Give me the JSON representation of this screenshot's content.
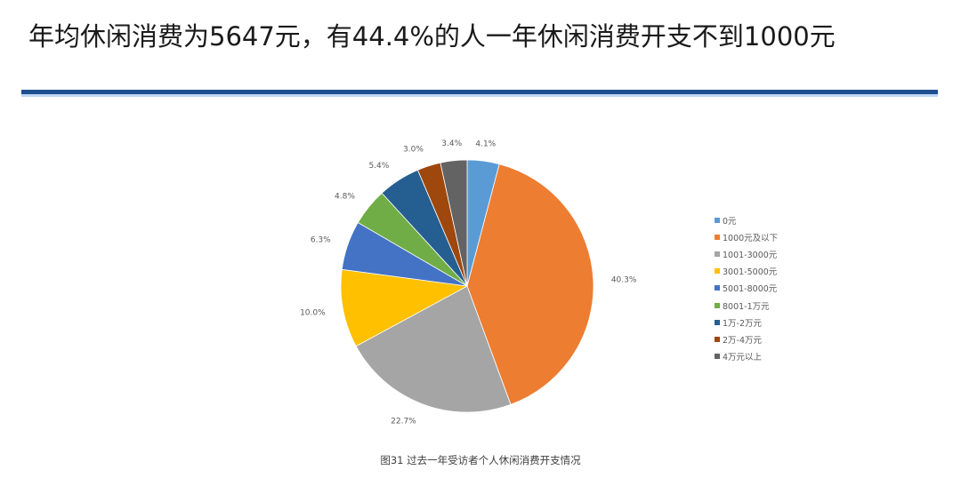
{
  "header": {
    "title": "年均休闲消费为5647元，有44.4%的人一年休闲消费开支不到1000元"
  },
  "colors": {
    "rule": "#1e4f8f",
    "rule_light": "#bcd6f3"
  },
  "caption": "图31 过去一年受访者个人休闲消费开支情况",
  "chart_data": {
    "type": "pie",
    "title": "图31 过去一年受访者个人休闲消费开支情况",
    "categories": [
      "0元",
      "1000元及以下",
      "1001-3000元",
      "3001-5000元",
      "5001-8000元",
      "8001-1万元",
      "1万-2万元",
      "2万-4万元",
      "4万元以上"
    ],
    "values": [
      4.1,
      40.3,
      22.7,
      10.0,
      6.3,
      4.8,
      5.4,
      3.0,
      3.4
    ],
    "labels": [
      "4.1%",
      "40.3%",
      "22.7%",
      "10.0%",
      "6.3%",
      "4.8%",
      "5.4%",
      "3.0%",
      "3.4%"
    ],
    "colors": [
      "#5b9bd5",
      "#ed7d31",
      "#a5a5a5",
      "#ffc000",
      "#4472c4",
      "#70ad47",
      "#255e91",
      "#9e480e",
      "#636363"
    ],
    "start_angle": "12 o'clock",
    "direction": "clockwise",
    "legend_position": "right",
    "unit": "%"
  },
  "legend": {
    "items": [
      {
        "label": "0元",
        "color": "#5b9bd5"
      },
      {
        "label": "1000元及以下",
        "color": "#ed7d31"
      },
      {
        "label": "1001-3000元",
        "color": "#a5a5a5"
      },
      {
        "label": "3001-5000元",
        "color": "#ffc000"
      },
      {
        "label": "5001-8000元",
        "color": "#4472c4"
      },
      {
        "label": "8001-1万元",
        "color": "#70ad47"
      },
      {
        "label": "1万-2万元",
        "color": "#255e91"
      },
      {
        "label": "2万-4万元",
        "color": "#9e480e"
      },
      {
        "label": "4万元以上",
        "color": "#636363"
      }
    ]
  }
}
